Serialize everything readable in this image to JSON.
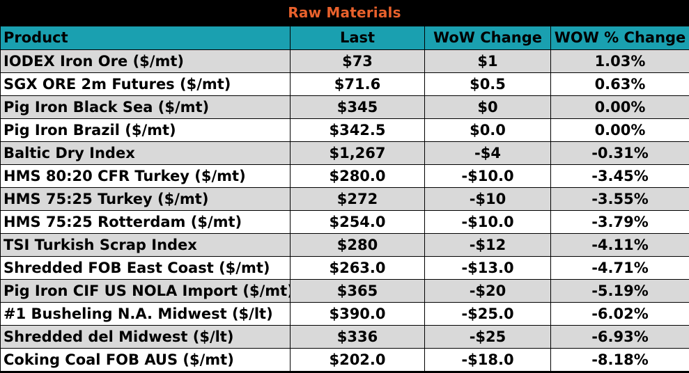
{
  "title": "Raw Materials",
  "colors": {
    "title_text": "#e8612c",
    "header_bg": "#1aa0b0",
    "row_shade": "#d9d9d9",
    "row_plain": "#ffffff",
    "border": "#000000"
  },
  "columns": [
    "Product",
    "Last",
    "WoW Change",
    "WOW % Change"
  ],
  "rows": [
    {
      "product": "IODEX  Iron Ore ($/mt)",
      "last": "$73",
      "wow": "$1",
      "pct": "1.03%"
    },
    {
      "product": "SGX ORE 2m Futures ($/mt)",
      "last": "$71.6",
      "wow": "$0.5",
      "pct": "0.63%"
    },
    {
      "product": "Pig Iron Black Sea ($/mt)",
      "last": "$345",
      "wow": "$0",
      "pct": "0.00%"
    },
    {
      "product": "Pig Iron Brazil ($/mt)",
      "last": "$342.5",
      "wow": "$0.0",
      "pct": "0.00%"
    },
    {
      "product": "Baltic Dry Index",
      "last": "$1,267",
      "wow": "-$4",
      "pct": "-0.31%"
    },
    {
      "product": "HMS 80:20 CFR Turkey ($/mt)",
      "last": "$280.0",
      "wow": "-$10.0",
      "pct": "-3.45%"
    },
    {
      "product": "HMS 75:25 Turkey ($/mt)",
      "last": "$272",
      "wow": "-$10",
      "pct": "-3.55%"
    },
    {
      "product": "HMS 75:25 Rotterdam ($/mt)",
      "last": "$254.0",
      "wow": "-$10.0",
      "pct": "-3.79%"
    },
    {
      "product": "TSI Turkish Scrap Index",
      "last": "$280",
      "wow": "-$12",
      "pct": "-4.11%"
    },
    {
      "product": "Shredded FOB East Coast ($/mt)",
      "last": "$263.0",
      "wow": "-$13.0",
      "pct": "-4.71%"
    },
    {
      "product": "Pig Iron CIF US NOLA Import ($/mt)",
      "last": "$365",
      "wow": "-$20",
      "pct": "-5.19%"
    },
    {
      "product": "#1 Busheling N.A. Midwest ($/lt)",
      "last": "$390.0",
      "wow": "-$25.0",
      "pct": "-6.02%"
    },
    {
      "product": "Shredded del  Midwest ($/lt)",
      "last": "$336",
      "wow": "-$25",
      "pct": "-6.93%"
    },
    {
      "product": "Coking Coal FOB AUS ($/mt)",
      "last": "$202.0",
      "wow": "-$18.0",
      "pct": "-8.18%"
    }
  ]
}
